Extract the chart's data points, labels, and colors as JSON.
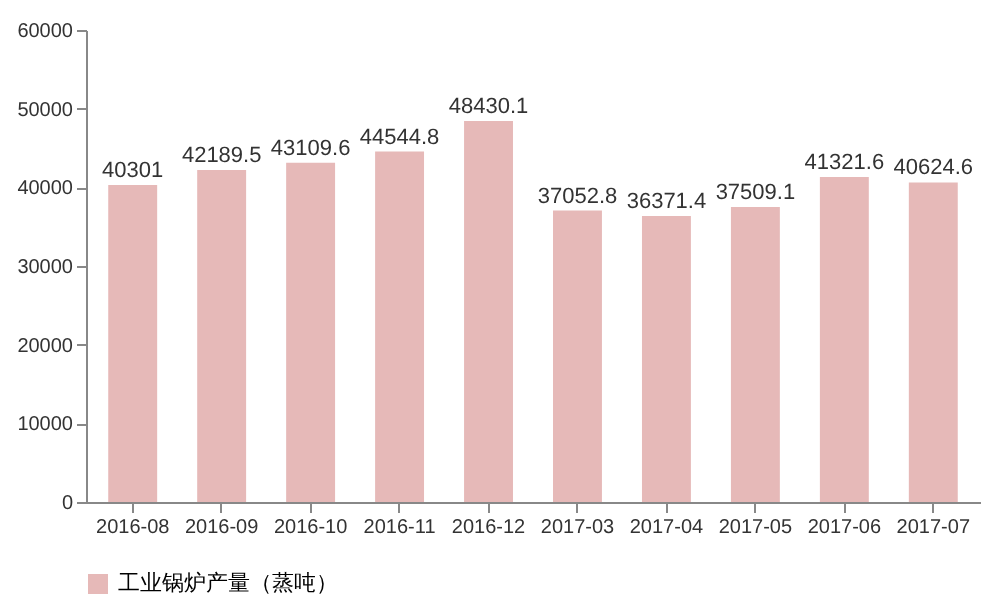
{
  "chart_data": {
    "type": "bar",
    "categories": [
      "2016-08",
      "2016-09",
      "2016-10",
      "2016-11",
      "2016-12",
      "2017-03",
      "2017-04",
      "2017-05",
      "2017-06",
      "2017-07"
    ],
    "series": [
      {
        "name": "工业锅炉产量（蒸吨）",
        "color": "#e6b9b8",
        "values": [
          40301,
          42189.5,
          43109.6,
          44544.8,
          48430.1,
          37052.8,
          36371.4,
          37509.1,
          41321.6,
          40624.6
        ]
      }
    ],
    "ylim": [
      0,
      60000
    ],
    "yticks": [
      0,
      10000,
      20000,
      30000,
      40000,
      50000,
      60000
    ],
    "grid": false,
    "legend": "bottom",
    "data_labels": true
  }
}
